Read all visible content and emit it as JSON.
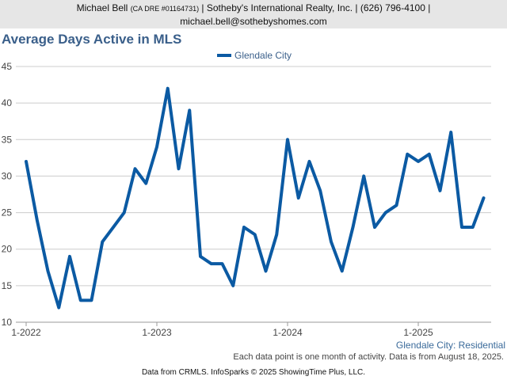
{
  "header": {
    "name": "Michael Bell",
    "license": "(CA DRE #01164731)",
    "rest": "| Sotheby's International Realty, Inc. | (626) 796-4100 |",
    "email": "michael.bell@sothebyshomes.com"
  },
  "footer": {
    "subtitle": "Glendale City: Residential",
    "note": "Each data point is one month of activity. Data is from August 18, 2025.",
    "credit": "Data from CRMLS. InfoSparks © 2025 ShowingTime Plus, LLC."
  },
  "colors": {
    "series": "#0b5aa3",
    "grid": "#cccccc",
    "title": "#3a5f8a"
  },
  "chart_data": {
    "type": "line",
    "title": "Average Days Active in MLS",
    "ylim": [
      10,
      45
    ],
    "yticks": [
      10,
      15,
      20,
      25,
      30,
      35,
      40,
      45
    ],
    "xticks": [
      "1-2022",
      "1-2023",
      "1-2024",
      "1-2025"
    ],
    "legend_position": "top-center",
    "grid": true,
    "series": [
      {
        "name": "Glendale City",
        "x": [
          "2022-01",
          "2022-02",
          "2022-03",
          "2022-04",
          "2022-05",
          "2022-06",
          "2022-07",
          "2022-08",
          "2022-09",
          "2022-10",
          "2022-11",
          "2022-12",
          "2023-01",
          "2023-02",
          "2023-03",
          "2023-04",
          "2023-05",
          "2023-06",
          "2023-07",
          "2023-08",
          "2023-09",
          "2023-10",
          "2023-11",
          "2023-12",
          "2024-01",
          "2024-02",
          "2024-03",
          "2024-04",
          "2024-05",
          "2024-06",
          "2024-07",
          "2024-08",
          "2024-09",
          "2024-10",
          "2024-11",
          "2024-12",
          "2025-01",
          "2025-02",
          "2025-03",
          "2025-04",
          "2025-05",
          "2025-06",
          "2025-07"
        ],
        "values": [
          32,
          24,
          17,
          12,
          19,
          13,
          13,
          21,
          23,
          25,
          31,
          29,
          34,
          42,
          31,
          39,
          19,
          18,
          18,
          15,
          23,
          22,
          17,
          22,
          35,
          27,
          32,
          28,
          21,
          17,
          23,
          30,
          23,
          25,
          26,
          33,
          32,
          33,
          28,
          36,
          23,
          23,
          27
        ]
      }
    ]
  }
}
